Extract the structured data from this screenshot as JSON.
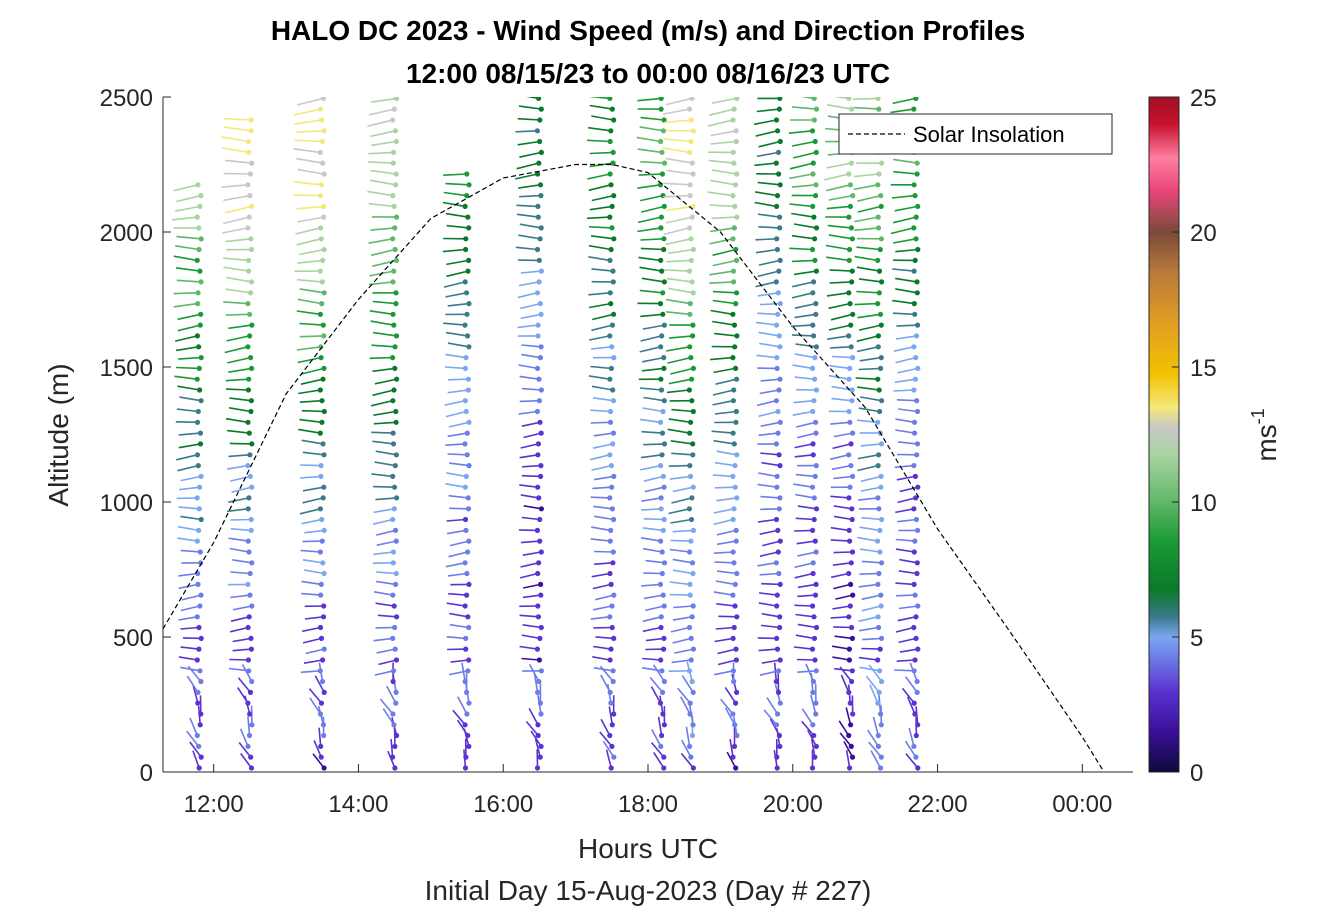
{
  "chart_data": {
    "type": "wind-barb-profile",
    "title": "HALO DC 2023 - Wind Speed (m/s) and Direction Profiles",
    "subtitle": "12:00 08/15/23 to 00:00 08/16/23  UTC",
    "xlabel": "Hours UTC",
    "footer": "Initial Day 15-Aug-2023 (Day # 227)",
    "ylabel": "Altitude (m)",
    "x_ticks": [
      {
        "hour": 12,
        "label": "12:00"
      },
      {
        "hour": 14,
        "label": "14:00"
      },
      {
        "hour": 16,
        "label": "16:00"
      },
      {
        "hour": 18,
        "label": "18:00"
      },
      {
        "hour": 20,
        "label": "20:00"
      },
      {
        "hour": 22,
        "label": "22:00"
      },
      {
        "hour": 24,
        "label": "00:00"
      }
    ],
    "y_ticks": [
      0,
      500,
      1000,
      1500,
      2000,
      2500
    ],
    "xlim_hours": [
      11.3,
      24.7
    ],
    "ylim": [
      0,
      2500
    ],
    "colorbar": {
      "label": "ms",
      "label_superscript": "-1",
      "ticks": [
        0,
        5,
        10,
        15,
        20,
        25
      ],
      "range": [
        0,
        25
      ],
      "colors": [
        "#0d0a3a",
        "#3a0f9a",
        "#5a33d0",
        "#6d7de8",
        "#7aa7f0",
        "#3a7a8a",
        "#0a7a2a",
        "#1a9a35",
        "#5fb86a",
        "#a9d4a0",
        "#c8c8c8",
        "#f5e87a",
        "#f2c200",
        "#e3a020",
        "#b87a3a",
        "#7a4a3a",
        "#e8457a",
        "#ff7fa0",
        "#c8102e",
        "#a01020"
      ]
    },
    "legend": {
      "label": "Solar Insolation",
      "position": "top-right"
    },
    "solar_insolation": {
      "x": [
        11.3,
        12.0,
        13.0,
        14.0,
        15.0,
        16.0,
        17.0,
        17.5,
        18.0,
        19.0,
        20.0,
        21.0,
        22.0,
        23.0,
        24.0,
        24.3
      ],
      "y": [
        530,
        850,
        1400,
        1750,
        2050,
        2200,
        2250,
        2250,
        2220,
        2000,
        1650,
        1350,
        900,
        520,
        130,
        0
      ]
    },
    "speed_profile_by_time": {
      "hour": [
        11.8,
        12.5,
        13.5,
        14.5,
        15.5,
        16.5,
        17.5,
        18.2,
        18.6,
        19.2,
        19.8,
        20.3,
        20.8,
        21.2,
        21.7
      ],
      "low_speed": [
        3,
        3,
        3,
        3,
        3,
        3,
        3,
        3,
        4,
        3,
        3,
        3,
        2,
        4,
        3
      ],
      "mid_speed": [
        7,
        7,
        7,
        7,
        5,
        3,
        5,
        6,
        7,
        6,
        4,
        4,
        4,
        6,
        4
      ],
      "upper_speed": [
        12,
        14,
        14,
        12,
        9,
        8,
        9,
        10,
        14,
        12,
        8,
        10,
        11,
        11,
        10
      ],
      "top_altitude": [
        2200,
        2450,
        2500,
        2500,
        2250,
        2500,
        2500,
        2500,
        2500,
        2500,
        2500,
        2500,
        2500,
        2500,
        2500
      ]
    },
    "barb_spacing_m": 40
  }
}
